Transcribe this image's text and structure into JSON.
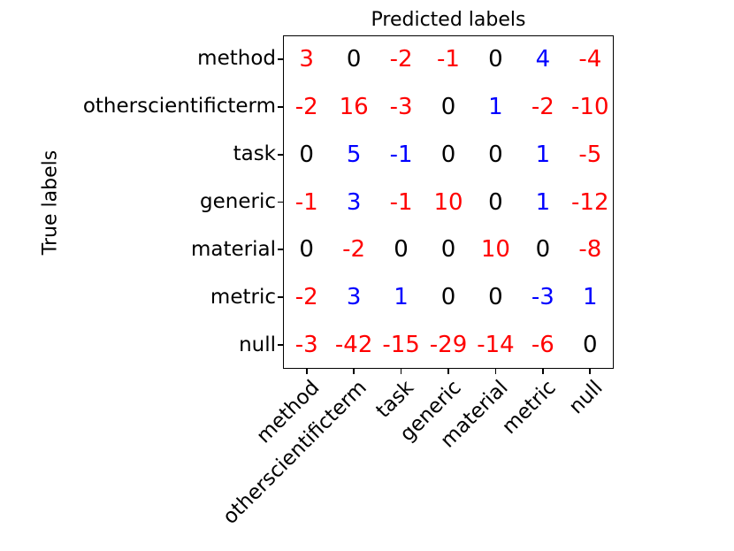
{
  "chart_data": {
    "type": "heatmap",
    "title": "Predicted labels",
    "ylabel": "True labels",
    "x_categories": [
      "method",
      "otherscientificterm",
      "task",
      "generic",
      "material",
      "metric",
      "null"
    ],
    "y_categories": [
      "method",
      "otherscientificterm",
      "task",
      "generic",
      "material",
      "metric",
      "null"
    ],
    "values": [
      [
        3,
        0,
        -2,
        -1,
        0,
        4,
        -4
      ],
      [
        -2,
        16,
        -3,
        0,
        1,
        -2,
        -10
      ],
      [
        0,
        5,
        -1,
        0,
        0,
        1,
        -5
      ],
      [
        -1,
        3,
        -1,
        10,
        0,
        1,
        -12
      ],
      [
        0,
        -2,
        0,
        0,
        10,
        0,
        -8
      ],
      [
        -2,
        3,
        1,
        0,
        0,
        -3,
        1
      ],
      [
        -3,
        -42,
        -15,
        -29,
        -14,
        -6,
        0
      ]
    ],
    "value_colors": [
      [
        "red",
        "black",
        "red",
        "red",
        "black",
        "blue",
        "red"
      ],
      [
        "red",
        "red",
        "red",
        "black",
        "blue",
        "red",
        "red"
      ],
      [
        "black",
        "blue",
        "blue",
        "black",
        "black",
        "blue",
        "red"
      ],
      [
        "red",
        "blue",
        "red",
        "red",
        "black",
        "blue",
        "red"
      ],
      [
        "black",
        "red",
        "black",
        "black",
        "red",
        "black",
        "red"
      ],
      [
        "red",
        "blue",
        "blue",
        "black",
        "black",
        "blue",
        "blue"
      ],
      [
        "red",
        "red",
        "red",
        "red",
        "red",
        "red",
        "black"
      ]
    ],
    "palette": {
      "red": "#ff0000",
      "blue": "#0000ff",
      "black": "#000000"
    },
    "frame_color": "#000000",
    "grid": false,
    "legend": "none",
    "x_tick_rotation_deg": 45,
    "title_position": "top"
  }
}
